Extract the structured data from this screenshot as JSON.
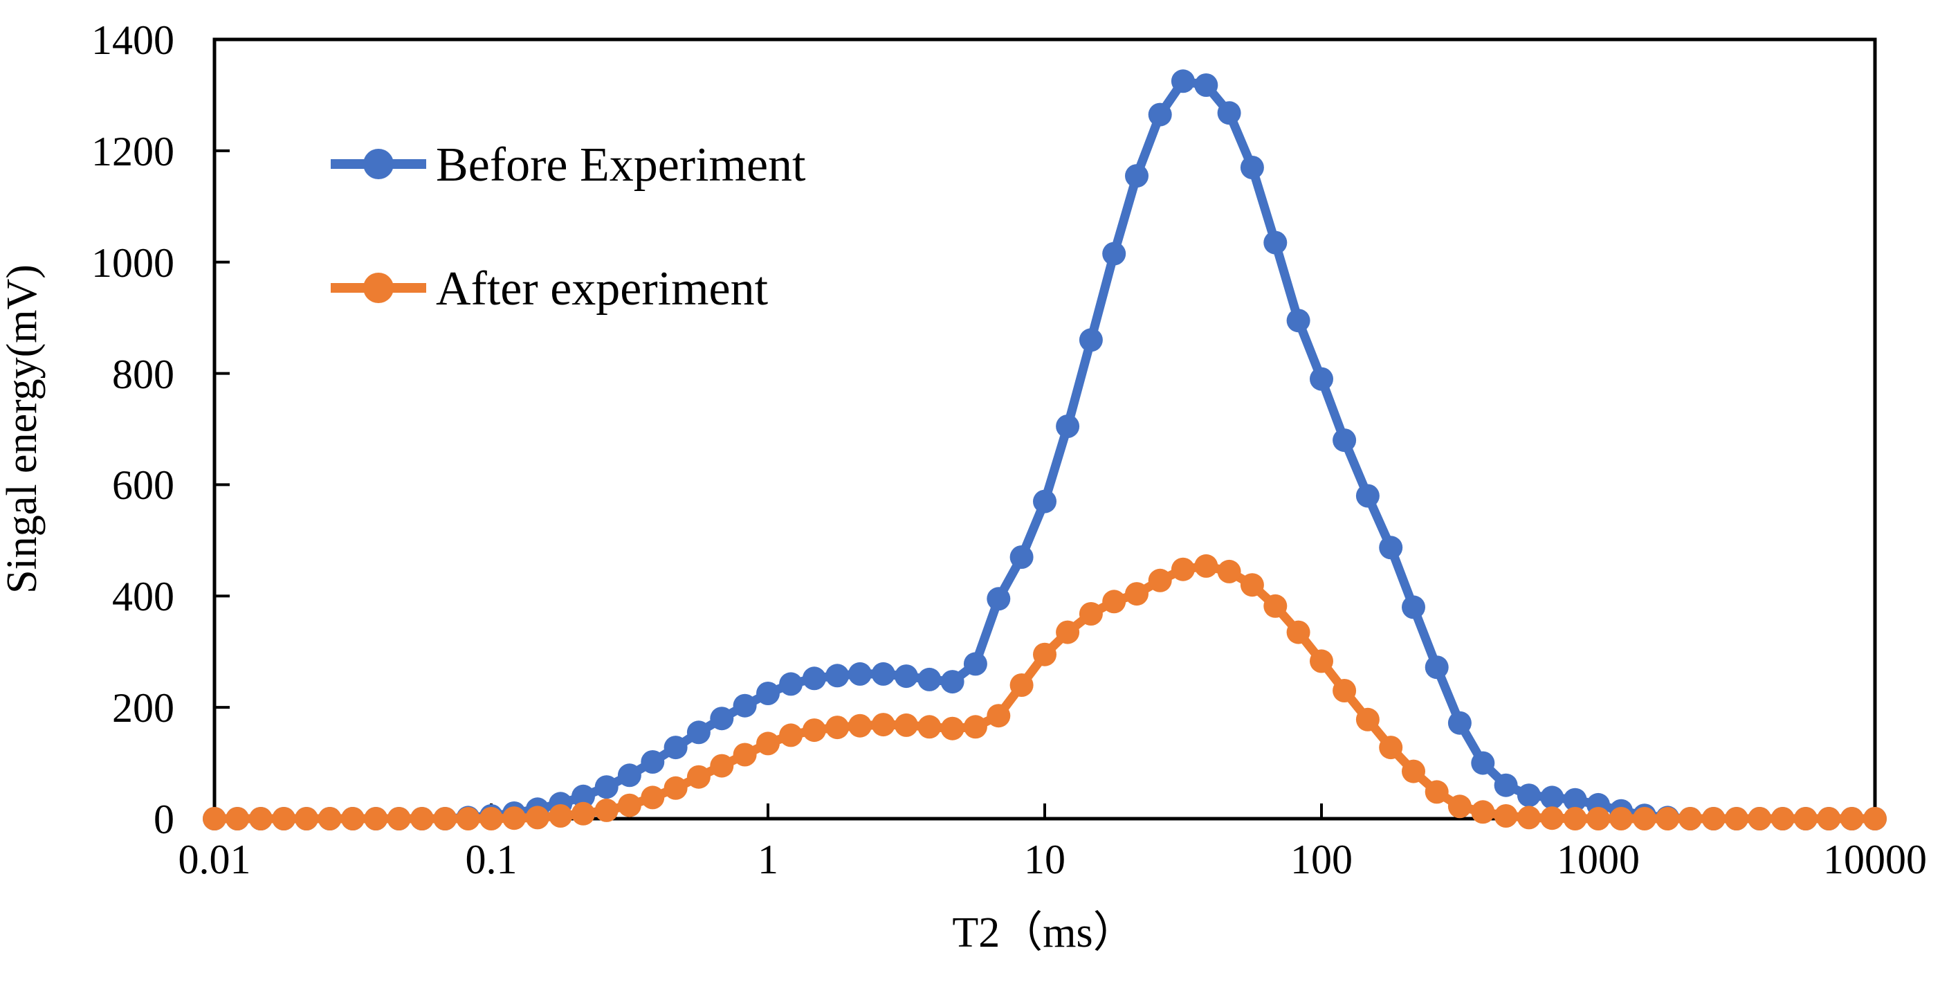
{
  "chart_data": {
    "type": "line",
    "title": "",
    "xlabel": "T2（ms）",
    "ylabel": "Singal energy(mV)",
    "x_scale": "log",
    "xlim": [
      0.01,
      10000
    ],
    "ylim": [
      0,
      1400
    ],
    "x_tick_labels": [
      "0.01",
      "0.1",
      "1",
      "10",
      "100",
      "1000",
      "10000"
    ],
    "y_tick_labels": [
      "1400",
      "1200",
      "1000",
      "800",
      "600",
      "400",
      "200",
      "0"
    ],
    "grid": false,
    "axis_color": "#000000",
    "legend": {
      "position": "inside-top-left",
      "items": [
        "Before Experiment",
        "After experiment"
      ]
    },
    "series": [
      {
        "name": "Before Experiment",
        "color": "#4472C4",
        "marker": "circle",
        "points": [
          [
            0.01,
            0
          ],
          [
            0.0121,
            0
          ],
          [
            0.0147,
            0
          ],
          [
            0.0178,
            0
          ],
          [
            0.0215,
            0
          ],
          [
            0.0261,
            0
          ],
          [
            0.0316,
            0
          ],
          [
            0.0383,
            0
          ],
          [
            0.0464,
            0
          ],
          [
            0.0562,
            0
          ],
          [
            0.0681,
            0
          ],
          [
            0.0825,
            2
          ],
          [
            0.1,
            5
          ],
          [
            0.121,
            10
          ],
          [
            0.147,
            17
          ],
          [
            0.178,
            27
          ],
          [
            0.215,
            40
          ],
          [
            0.261,
            57
          ],
          [
            0.316,
            78
          ],
          [
            0.383,
            102
          ],
          [
            0.464,
            128
          ],
          [
            0.562,
            155
          ],
          [
            0.681,
            180
          ],
          [
            0.825,
            203
          ],
          [
            1,
            225
          ],
          [
            1.21,
            242
          ],
          [
            1.47,
            252
          ],
          [
            1.78,
            257
          ],
          [
            2.15,
            260
          ],
          [
            2.61,
            260
          ],
          [
            3.16,
            256
          ],
          [
            3.83,
            250
          ],
          [
            4.64,
            246
          ],
          [
            5.62,
            278
          ],
          [
            6.81,
            395
          ],
          [
            8.25,
            470
          ],
          [
            10,
            570
          ],
          [
            12.1,
            705
          ],
          [
            14.7,
            860
          ],
          [
            17.8,
            1015
          ],
          [
            21.5,
            1155
          ],
          [
            26.1,
            1265
          ],
          [
            31.6,
            1325
          ],
          [
            38.3,
            1318
          ],
          [
            46.4,
            1268
          ],
          [
            56.2,
            1170
          ],
          [
            68.1,
            1035
          ],
          [
            82.5,
            895
          ],
          [
            100,
            790
          ],
          [
            121,
            680
          ],
          [
            147,
            580
          ],
          [
            178,
            487
          ],
          [
            215,
            380
          ],
          [
            261,
            272
          ],
          [
            316,
            172
          ],
          [
            383,
            100
          ],
          [
            464,
            60
          ],
          [
            562,
            42
          ],
          [
            681,
            38
          ],
          [
            825,
            34
          ],
          [
            1000,
            25
          ],
          [
            1210,
            14
          ],
          [
            1470,
            6
          ],
          [
            1780,
            2
          ],
          [
            2150,
            0
          ],
          [
            2610,
            0
          ],
          [
            3160,
            0
          ],
          [
            3830,
            0
          ],
          [
            4640,
            0
          ],
          [
            5620,
            0
          ],
          [
            6810,
            0
          ],
          [
            8250,
            0
          ],
          [
            10000,
            0
          ]
        ]
      },
      {
        "name": "After experiment",
        "color": "#ED7D31",
        "marker": "circle",
        "points": [
          [
            0.01,
            0
          ],
          [
            0.0121,
            0
          ],
          [
            0.0147,
            0
          ],
          [
            0.0178,
            0
          ],
          [
            0.0215,
            0
          ],
          [
            0.0261,
            0
          ],
          [
            0.0316,
            0
          ],
          [
            0.0383,
            0
          ],
          [
            0.0464,
            0
          ],
          [
            0.0562,
            0
          ],
          [
            0.0681,
            0
          ],
          [
            0.0825,
            0
          ],
          [
            0.1,
            0
          ],
          [
            0.121,
            1
          ],
          [
            0.147,
            2
          ],
          [
            0.178,
            5
          ],
          [
            0.215,
            9
          ],
          [
            0.261,
            15
          ],
          [
            0.316,
            24
          ],
          [
            0.383,
            38
          ],
          [
            0.464,
            55
          ],
          [
            0.562,
            75
          ],
          [
            0.681,
            95
          ],
          [
            0.825,
            115
          ],
          [
            1,
            135
          ],
          [
            1.21,
            150
          ],
          [
            1.47,
            159
          ],
          [
            1.78,
            164
          ],
          [
            2.15,
            167
          ],
          [
            2.61,
            169
          ],
          [
            3.16,
            168
          ],
          [
            3.83,
            165
          ],
          [
            4.64,
            162
          ],
          [
            5.62,
            165
          ],
          [
            6.81,
            185
          ],
          [
            8.25,
            240
          ],
          [
            10,
            295
          ],
          [
            12.1,
            335
          ],
          [
            14.7,
            368
          ],
          [
            17.8,
            390
          ],
          [
            21.5,
            404
          ],
          [
            26.1,
            428
          ],
          [
            31.6,
            448
          ],
          [
            38.3,
            454
          ],
          [
            46.4,
            444
          ],
          [
            56.2,
            420
          ],
          [
            68.1,
            382
          ],
          [
            82.5,
            335
          ],
          [
            100,
            283
          ],
          [
            121,
            230
          ],
          [
            147,
            178
          ],
          [
            178,
            128
          ],
          [
            215,
            85
          ],
          [
            261,
            48
          ],
          [
            316,
            22
          ],
          [
            383,
            12
          ],
          [
            464,
            5
          ],
          [
            562,
            2
          ],
          [
            681,
            1
          ],
          [
            825,
            0
          ],
          [
            1000,
            0
          ],
          [
            1210,
            0
          ],
          [
            1470,
            0
          ],
          [
            1780,
            0
          ],
          [
            2150,
            0
          ],
          [
            2610,
            0
          ],
          [
            3160,
            0
          ],
          [
            3830,
            0
          ],
          [
            4640,
            0
          ],
          [
            5620,
            0
          ],
          [
            6810,
            0
          ],
          [
            8250,
            0
          ],
          [
            10000,
            0
          ]
        ]
      }
    ]
  }
}
